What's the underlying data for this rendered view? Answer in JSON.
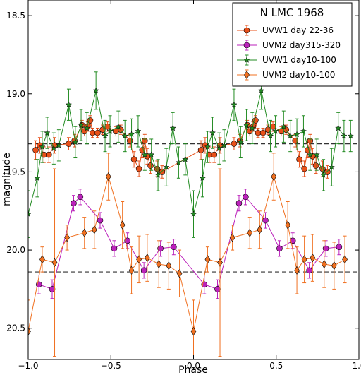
{
  "chart_data": {
    "type": "scatter",
    "title": "",
    "xlabel": "Phase",
    "ylabel": "magnitude",
    "xlim": [
      -1.0,
      1.0
    ],
    "ylim": [
      20.7,
      18.4
    ],
    "y_inverted": true,
    "grid": false,
    "legend_position": "top-right",
    "legend_title": "N LMC 1968",
    "x_ticks": [
      -1.0,
      -0.5,
      0.0,
      0.5,
      1.0
    ],
    "x_tick_labels": [
      "−1.0",
      "−0.5",
      "0.0",
      "0.5",
      "1.0"
    ],
    "y_ticks": [
      18.5,
      19.0,
      19.5,
      20.0,
      20.5
    ],
    "y_tick_labels": [
      "18.5",
      "19.0",
      "19.5",
      "20.0",
      "20.5"
    ],
    "reference_lines": [
      19.32,
      20.14
    ],
    "reference_line_color": "#333333",
    "series": [
      {
        "name": "UVW1 day 22-36",
        "color": "#e8501a",
        "marker": "circle",
        "points": [
          {
            "x": -0.955,
            "y": 19.36,
            "err": 0.06
          },
          {
            "x": -0.93,
            "y": 19.33,
            "err": 0.05
          },
          {
            "x": -0.905,
            "y": 19.39,
            "err": 0.05
          },
          {
            "x": -0.875,
            "y": 19.39,
            "err": 0.05
          },
          {
            "x": -0.84,
            "y": 19.33,
            "err": 0.05
          },
          {
            "x": -0.755,
            "y": 19.32,
            "err": 0.04
          },
          {
            "x": -0.72,
            "y": 19.3,
            "err": 0.04
          },
          {
            "x": -0.675,
            "y": 19.2,
            "err": 0.03
          },
          {
            "x": -0.66,
            "y": 19.24,
            "err": 0.03
          },
          {
            "x": -0.64,
            "y": 19.21,
            "err": 0.03
          },
          {
            "x": -0.625,
            "y": 19.17,
            "err": 0.03
          },
          {
            "x": -0.61,
            "y": 19.25,
            "err": 0.03
          },
          {
            "x": -0.58,
            "y": 19.25,
            "err": 0.03
          },
          {
            "x": -0.55,
            "y": 19.23,
            "err": 0.03
          },
          {
            "x": -0.52,
            "y": 19.21,
            "err": 0.03
          },
          {
            "x": -0.47,
            "y": 19.24,
            "err": 0.03
          },
          {
            "x": -0.44,
            "y": 19.23,
            "err": 0.03
          },
          {
            "x": -0.385,
            "y": 19.3,
            "err": 0.04
          },
          {
            "x": -0.36,
            "y": 19.42,
            "err": 0.05
          },
          {
            "x": -0.33,
            "y": 19.48,
            "err": 0.05
          },
          {
            "x": -0.31,
            "y": 19.36,
            "err": 0.05
          },
          {
            "x": -0.295,
            "y": 19.3,
            "err": 0.04
          },
          {
            "x": -0.28,
            "y": 19.4,
            "err": 0.05
          },
          {
            "x": -0.26,
            "y": 19.46,
            "err": 0.05
          },
          {
            "x": -0.22,
            "y": 19.48,
            "err": 0.05
          },
          {
            "x": -0.19,
            "y": 19.5,
            "err": 0.04
          },
          {
            "x": 0.045,
            "y": 19.36,
            "err": 0.06
          },
          {
            "x": 0.07,
            "y": 19.33,
            "err": 0.05
          },
          {
            "x": 0.095,
            "y": 19.39,
            "err": 0.05
          },
          {
            "x": 0.125,
            "y": 19.39,
            "err": 0.05
          },
          {
            "x": 0.16,
            "y": 19.33,
            "err": 0.05
          },
          {
            "x": 0.245,
            "y": 19.32,
            "err": 0.04
          },
          {
            "x": 0.28,
            "y": 19.3,
            "err": 0.04
          },
          {
            "x": 0.325,
            "y": 19.2,
            "err": 0.03
          },
          {
            "x": 0.34,
            "y": 19.24,
            "err": 0.03
          },
          {
            "x": 0.36,
            "y": 19.21,
            "err": 0.03
          },
          {
            "x": 0.375,
            "y": 19.17,
            "err": 0.03
          },
          {
            "x": 0.39,
            "y": 19.25,
            "err": 0.03
          },
          {
            "x": 0.42,
            "y": 19.25,
            "err": 0.03
          },
          {
            "x": 0.45,
            "y": 19.23,
            "err": 0.03
          },
          {
            "x": 0.48,
            "y": 19.21,
            "err": 0.03
          },
          {
            "x": 0.53,
            "y": 19.24,
            "err": 0.03
          },
          {
            "x": 0.56,
            "y": 19.23,
            "err": 0.03
          },
          {
            "x": 0.615,
            "y": 19.3,
            "err": 0.04
          },
          {
            "x": 0.64,
            "y": 19.42,
            "err": 0.05
          },
          {
            "x": 0.67,
            "y": 19.48,
            "err": 0.05
          },
          {
            "x": 0.69,
            "y": 19.36,
            "err": 0.05
          },
          {
            "x": 0.705,
            "y": 19.3,
            "err": 0.04
          },
          {
            "x": 0.72,
            "y": 19.4,
            "err": 0.05
          },
          {
            "x": 0.74,
            "y": 19.46,
            "err": 0.05
          },
          {
            "x": 0.78,
            "y": 19.48,
            "err": 0.05
          },
          {
            "x": 0.81,
            "y": 19.5,
            "err": 0.04
          }
        ]
      },
      {
        "name": "UVM2 day315-320",
        "color": "#bb22bb",
        "marker": "circle",
        "points": [
          {
            "x": -0.935,
            "y": 20.22,
            "err": 0.06
          },
          {
            "x": -0.855,
            "y": 20.25,
            "err": 0.06
          },
          {
            "x": -0.725,
            "y": 19.7,
            "err": 0.05
          },
          {
            "x": -0.685,
            "y": 19.66,
            "err": 0.05
          },
          {
            "x": -0.565,
            "y": 19.81,
            "err": 0.05
          },
          {
            "x": -0.48,
            "y": 19.99,
            "err": 0.05
          },
          {
            "x": -0.4,
            "y": 19.94,
            "err": 0.05
          },
          {
            "x": -0.3,
            "y": 20.13,
            "err": 0.05
          },
          {
            "x": -0.2,
            "y": 19.99,
            "err": 0.05
          },
          {
            "x": -0.12,
            "y": 19.98,
            "err": 0.05
          },
          {
            "x": 0.065,
            "y": 20.22,
            "err": 0.06
          },
          {
            "x": 0.145,
            "y": 20.25,
            "err": 0.06
          },
          {
            "x": 0.275,
            "y": 19.7,
            "err": 0.05
          },
          {
            "x": 0.315,
            "y": 19.66,
            "err": 0.05
          },
          {
            "x": 0.435,
            "y": 19.81,
            "err": 0.05
          },
          {
            "x": 0.52,
            "y": 19.99,
            "err": 0.05
          },
          {
            "x": 0.6,
            "y": 19.94,
            "err": 0.05
          },
          {
            "x": 0.7,
            "y": 20.13,
            "err": 0.05
          },
          {
            "x": 0.8,
            "y": 19.99,
            "err": 0.05
          },
          {
            "x": 0.88,
            "y": 19.98,
            "err": 0.05
          }
        ]
      },
      {
        "name": "UVW1 day10-100",
        "color": "#228b22",
        "marker": "star",
        "points": [
          {
            "x": -1.0,
            "y": 19.77,
            "err": 0.15
          },
          {
            "x": -0.945,
            "y": 19.54,
            "err": 0.12
          },
          {
            "x": -0.915,
            "y": 19.34,
            "err": 0.1
          },
          {
            "x": -0.885,
            "y": 19.25,
            "err": 0.1
          },
          {
            "x": -0.845,
            "y": 19.35,
            "err": 0.1
          },
          {
            "x": -0.815,
            "y": 19.33,
            "err": 0.1
          },
          {
            "x": -0.755,
            "y": 19.07,
            "err": 0.1
          },
          {
            "x": -0.715,
            "y": 19.31,
            "err": 0.1
          },
          {
            "x": -0.68,
            "y": 19.2,
            "err": 0.1
          },
          {
            "x": -0.645,
            "y": 19.22,
            "err": 0.1
          },
          {
            "x": -0.59,
            "y": 18.98,
            "err": 0.12
          },
          {
            "x": -0.535,
            "y": 19.27,
            "err": 0.1
          },
          {
            "x": -0.505,
            "y": 19.24,
            "err": 0.1
          },
          {
            "x": -0.455,
            "y": 19.21,
            "err": 0.1
          },
          {
            "x": -0.415,
            "y": 19.27,
            "err": 0.1
          },
          {
            "x": -0.375,
            "y": 19.26,
            "err": 0.1
          },
          {
            "x": -0.335,
            "y": 19.24,
            "err": 0.1
          },
          {
            "x": -0.295,
            "y": 19.39,
            "err": 0.1
          },
          {
            "x": -0.255,
            "y": 19.39,
            "err": 0.1
          },
          {
            "x": -0.215,
            "y": 19.52,
            "err": 0.1
          },
          {
            "x": -0.165,
            "y": 19.47,
            "err": 0.12
          },
          {
            "x": -0.125,
            "y": 19.22,
            "err": 0.1
          },
          {
            "x": -0.09,
            "y": 19.44,
            "err": 0.1
          },
          {
            "x": -0.05,
            "y": 19.42,
            "err": 0.1
          },
          {
            "x": 0.0,
            "y": 19.77,
            "err": 0.15
          },
          {
            "x": 0.055,
            "y": 19.54,
            "err": 0.12
          },
          {
            "x": 0.085,
            "y": 19.34,
            "err": 0.1
          },
          {
            "x": 0.115,
            "y": 19.25,
            "err": 0.1
          },
          {
            "x": 0.155,
            "y": 19.35,
            "err": 0.1
          },
          {
            "x": 0.185,
            "y": 19.33,
            "err": 0.1
          },
          {
            "x": 0.245,
            "y": 19.07,
            "err": 0.1
          },
          {
            "x": 0.285,
            "y": 19.31,
            "err": 0.1
          },
          {
            "x": 0.32,
            "y": 19.2,
            "err": 0.1
          },
          {
            "x": 0.355,
            "y": 19.22,
            "err": 0.1
          },
          {
            "x": 0.41,
            "y": 18.98,
            "err": 0.12
          },
          {
            "x": 0.465,
            "y": 19.27,
            "err": 0.1
          },
          {
            "x": 0.495,
            "y": 19.24,
            "err": 0.1
          },
          {
            "x": 0.545,
            "y": 19.21,
            "err": 0.1
          },
          {
            "x": 0.585,
            "y": 19.27,
            "err": 0.1
          },
          {
            "x": 0.625,
            "y": 19.26,
            "err": 0.1
          },
          {
            "x": 0.665,
            "y": 19.24,
            "err": 0.1
          },
          {
            "x": 0.705,
            "y": 19.39,
            "err": 0.1
          },
          {
            "x": 0.745,
            "y": 19.39,
            "err": 0.1
          },
          {
            "x": 0.785,
            "y": 19.52,
            "err": 0.1
          },
          {
            "x": 0.835,
            "y": 19.47,
            "err": 0.12
          },
          {
            "x": 0.875,
            "y": 19.22,
            "err": 0.1
          },
          {
            "x": 0.91,
            "y": 19.27,
            "err": 0.1
          },
          {
            "x": 0.95,
            "y": 19.27,
            "err": 0.1
          }
        ]
      },
      {
        "name": "UVM2 day10-100",
        "color": "#f07020",
        "marker": "diamond",
        "points": [
          {
            "x": -1.0,
            "y": 20.52,
            "err": 0.2
          },
          {
            "x": -0.915,
            "y": 20.06,
            "err": 0.08
          },
          {
            "x": -0.84,
            "y": 20.08,
            "err": 0.6
          },
          {
            "x": -0.765,
            "y": 19.92,
            "err": 0.08
          },
          {
            "x": -0.66,
            "y": 19.89,
            "err": 0.1
          },
          {
            "x": -0.6,
            "y": 19.87,
            "err": 0.12
          },
          {
            "x": -0.515,
            "y": 19.53,
            "err": 0.15
          },
          {
            "x": -0.43,
            "y": 19.84,
            "err": 0.15
          },
          {
            "x": -0.375,
            "y": 20.13,
            "err": 0.15
          },
          {
            "x": -0.33,
            "y": 20.06,
            "err": 0.15
          },
          {
            "x": -0.28,
            "y": 20.05,
            "err": 0.15
          },
          {
            "x": -0.21,
            "y": 20.09,
            "err": 0.15
          },
          {
            "x": -0.15,
            "y": 20.1,
            "err": 0.15
          },
          {
            "x": -0.085,
            "y": 20.15,
            "err": 0.15
          },
          {
            "x": 0.0,
            "y": 20.52,
            "err": 0.2
          },
          {
            "x": 0.085,
            "y": 20.06,
            "err": 0.08
          },
          {
            "x": 0.16,
            "y": 20.08,
            "err": 0.6
          },
          {
            "x": 0.235,
            "y": 19.92,
            "err": 0.08
          },
          {
            "x": 0.34,
            "y": 19.89,
            "err": 0.1
          },
          {
            "x": 0.4,
            "y": 19.87,
            "err": 0.12
          },
          {
            "x": 0.485,
            "y": 19.53,
            "err": 0.15
          },
          {
            "x": 0.57,
            "y": 19.84,
            "err": 0.15
          },
          {
            "x": 0.625,
            "y": 20.13,
            "err": 0.15
          },
          {
            "x": 0.67,
            "y": 20.06,
            "err": 0.15
          },
          {
            "x": 0.72,
            "y": 20.05,
            "err": 0.15
          },
          {
            "x": 0.79,
            "y": 20.09,
            "err": 0.15
          },
          {
            "x": 0.85,
            "y": 20.1,
            "err": 0.15
          },
          {
            "x": 0.915,
            "y": 20.06,
            "err": 0.15
          }
        ]
      }
    ]
  }
}
